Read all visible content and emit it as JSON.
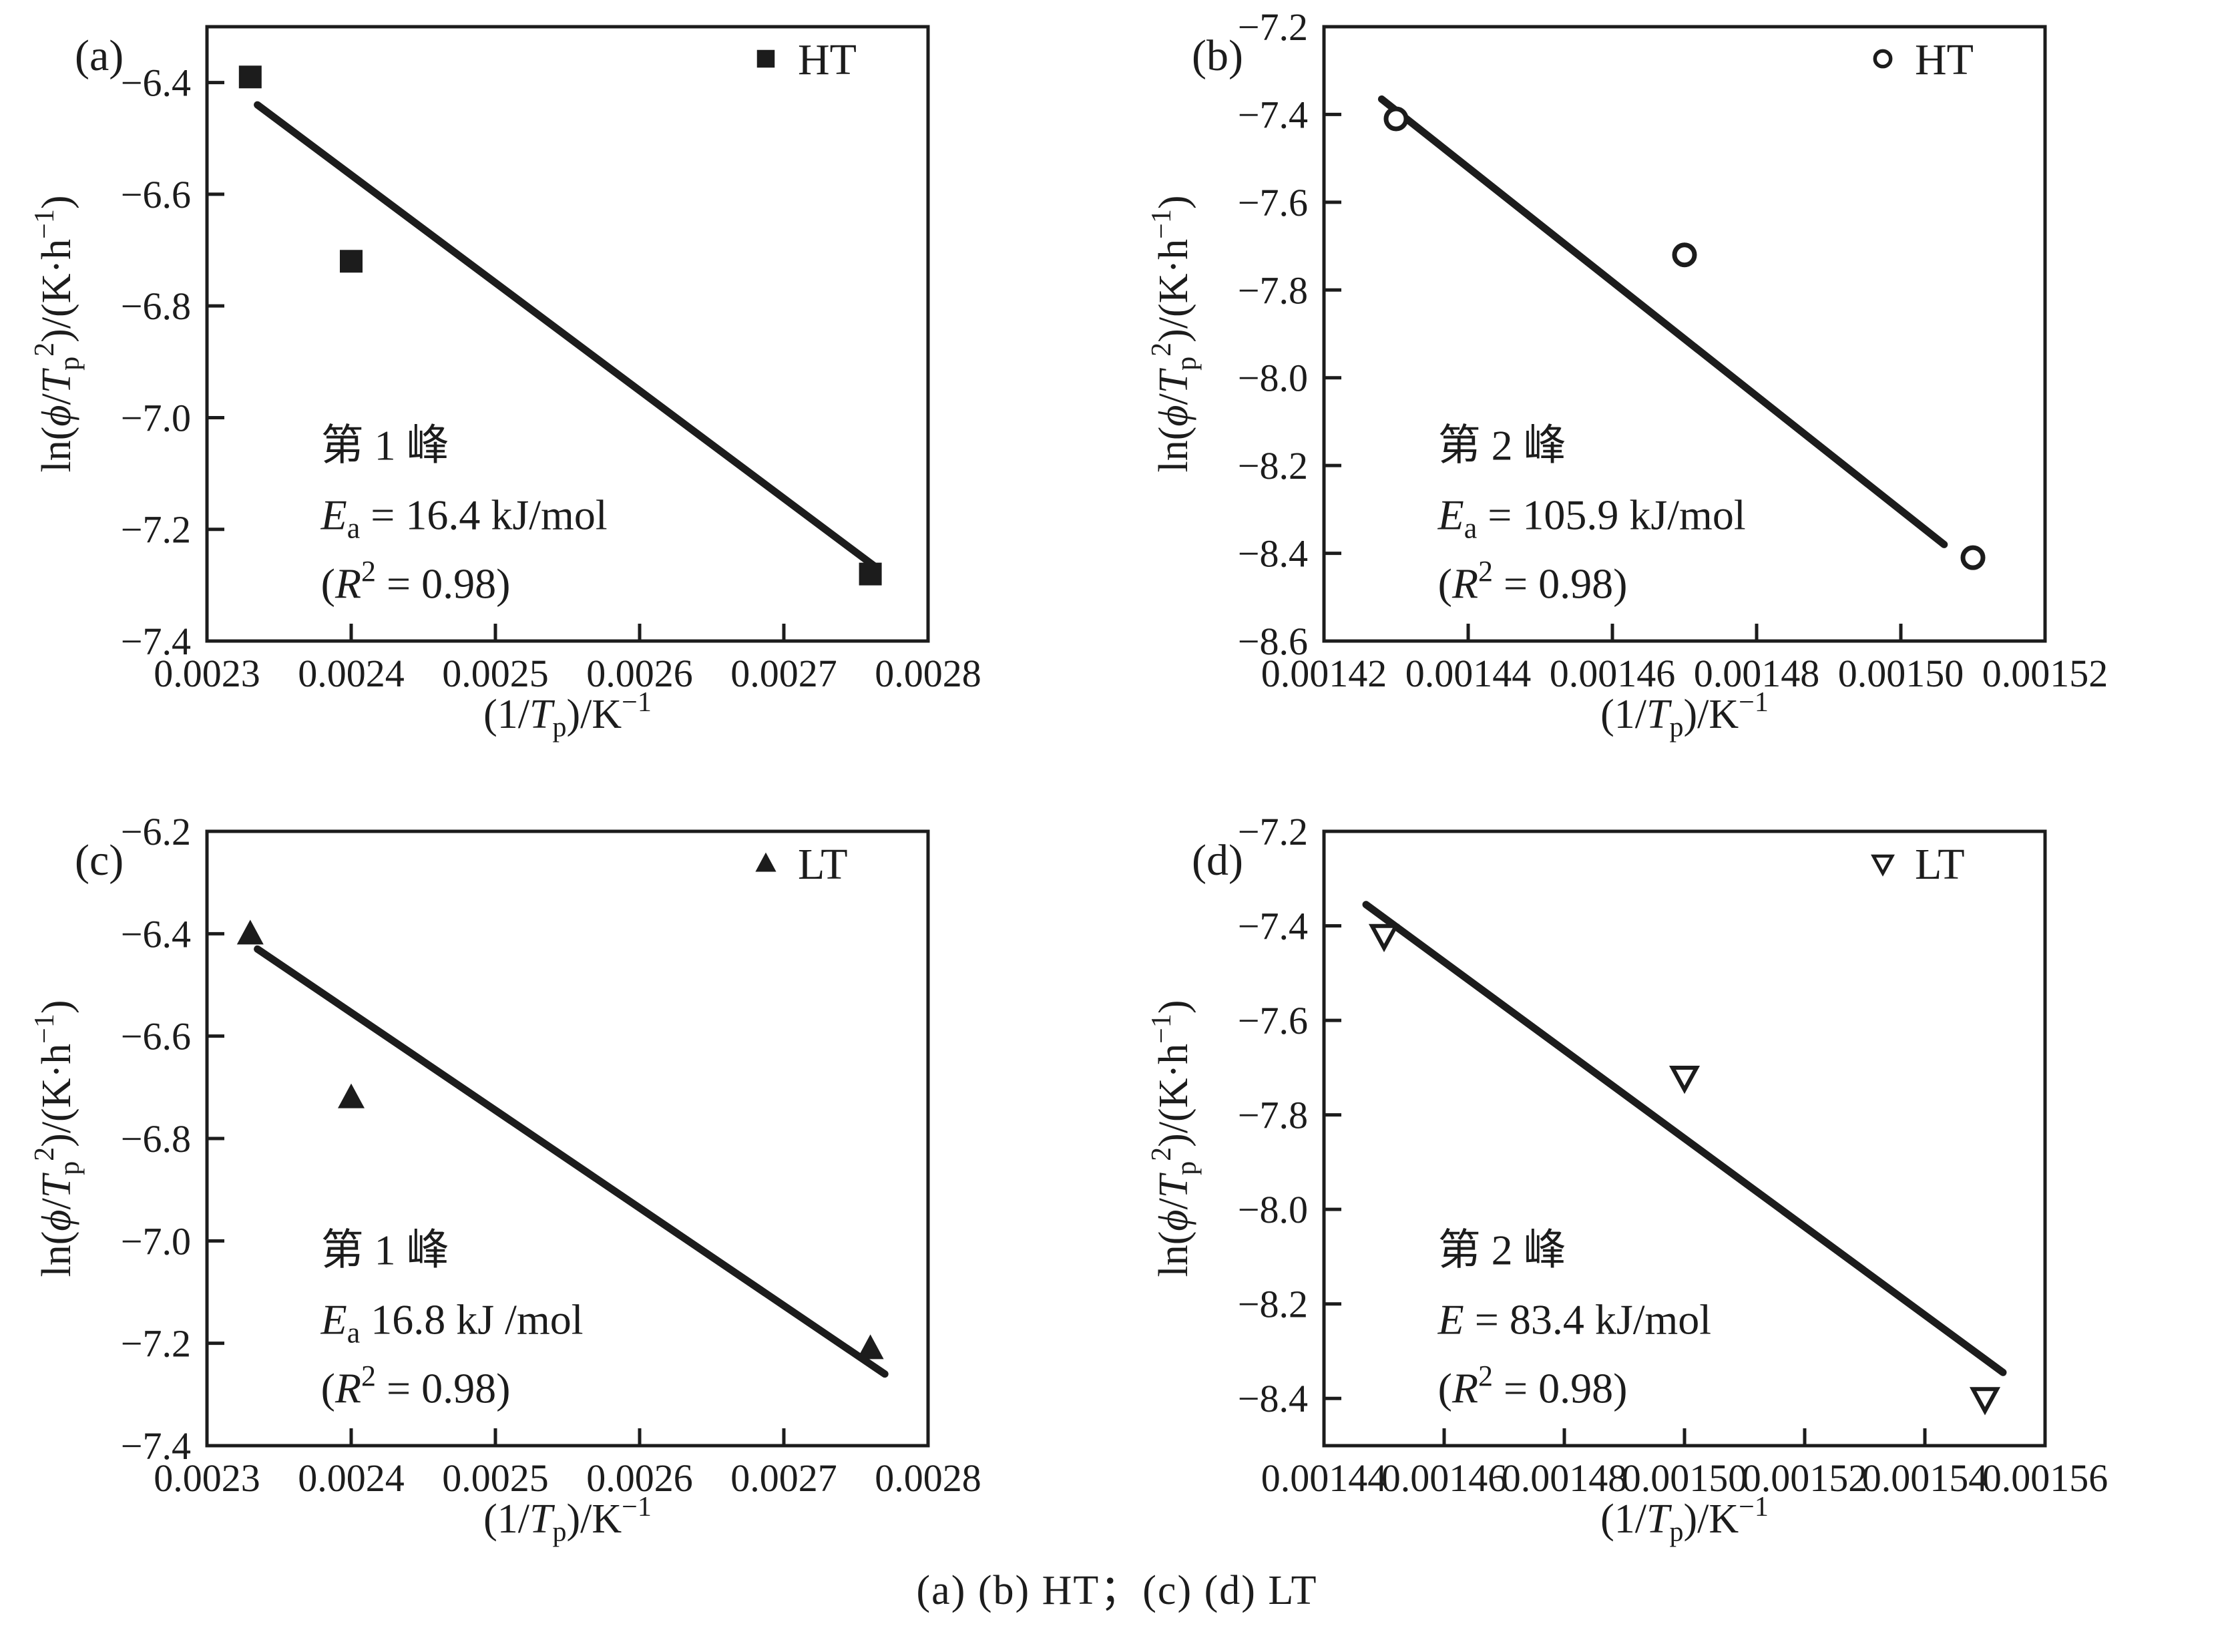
{
  "figure": {
    "caption": "(a) (b) HT；(c) (d) LT",
    "ink_color": "#1c1c1c",
    "background": "#ffffff"
  },
  "shared": {
    "xlabel_text": "(1/Tp)/K^-1",
    "ylabel_text": "ln(φ/Tp^2)/(K·h^-1)",
    "xlabel_rich": [
      {
        "t": "(1/"
      },
      {
        "t": "T",
        "i": true
      },
      {
        "t": "p",
        "p": "sub"
      },
      {
        "t": ")/K"
      },
      {
        "t": "−1",
        "p": "sup"
      }
    ],
    "ylabel_rich": [
      {
        "t": "ln("
      },
      {
        "t": "ϕ",
        "i": true
      },
      {
        "t": "/"
      },
      {
        "t": "T",
        "i": true
      },
      {
        "t": "p",
        "p": "sub"
      },
      {
        "t": "2",
        "p": "sup"
      },
      {
        "t": ")/(K·h"
      },
      {
        "t": "−1",
        "p": "sup"
      },
      {
        "t": ")"
      }
    ]
  },
  "chart_data": [
    {
      "type": "scatter",
      "panel": "a",
      "panel_label": "(a)",
      "legend": {
        "label": "HT",
        "marker": "square-filled",
        "position": "top-right"
      },
      "marker": "square-filled",
      "xlim": [
        0.0023,
        0.0028
      ],
      "ylim": [
        -7.4,
        -6.3
      ],
      "xticks": [
        {
          "v": 0.0023,
          "l": "0.0023"
        },
        {
          "v": 0.0024,
          "l": "0.0024"
        },
        {
          "v": 0.0025,
          "l": "0.0025"
        },
        {
          "v": 0.0026,
          "l": "0.0026"
        },
        {
          "v": 0.0027,
          "l": "0.0027"
        },
        {
          "v": 0.0028,
          "l": "0.0028"
        }
      ],
      "yticks": [
        {
          "v": -6.4,
          "l": "−6.4"
        },
        {
          "v": -6.6,
          "l": "−6.6"
        },
        {
          "v": -6.8,
          "l": "−6.8"
        },
        {
          "v": -7.0,
          "l": "−7.0"
        },
        {
          "v": -7.2,
          "l": "−7.2"
        },
        {
          "v": -7.4,
          "l": "−7.4"
        }
      ],
      "points": [
        [
          0.00233,
          -6.39
        ],
        [
          0.0024,
          -6.72
        ],
        [
          0.00276,
          -7.28
        ]
      ],
      "fit_line": [
        [
          0.002335,
          -6.44
        ],
        [
          0.002765,
          -7.27
        ]
      ],
      "annotation": {
        "lines_text": [
          "第 1 峰",
          "Ea = 16.4 kJ/mol",
          "(R² = 0.98)"
        ],
        "lines_rich": [
          [
            {
              "t": "第 1 峰"
            }
          ],
          [
            {
              "t": "E",
              "i": true
            },
            {
              "t": "a",
              "p": "sub"
            },
            {
              "t": " = 16.4 kJ/mol"
            }
          ],
          [
            {
              "t": "("
            },
            {
              "t": "R",
              "i": true
            },
            {
              "t": "2",
              "p": "sup"
            },
            {
              "t": " = 0.98)"
            }
          ]
        ]
      },
      "grid": false
    },
    {
      "type": "scatter",
      "panel": "b",
      "panel_label": "(b)",
      "legend": {
        "label": "HT",
        "marker": "circle-open",
        "position": "top-right"
      },
      "marker": "circle-open",
      "xlim": [
        0.00142,
        0.00152
      ],
      "ylim": [
        -8.6,
        -7.2
      ],
      "xticks": [
        {
          "v": 0.00142,
          "l": "0.00142"
        },
        {
          "v": 0.00144,
          "l": "0.00144"
        },
        {
          "v": 0.00146,
          "l": "0.00146"
        },
        {
          "v": 0.00148,
          "l": "0.00148"
        },
        {
          "v": 0.0015,
          "l": "0.00150"
        },
        {
          "v": 0.00152,
          "l": "0.00152"
        }
      ],
      "yticks": [
        {
          "v": -7.2,
          "l": "−7.2"
        },
        {
          "v": -7.4,
          "l": "−7.4"
        },
        {
          "v": -7.6,
          "l": "−7.6"
        },
        {
          "v": -7.8,
          "l": "−7.8"
        },
        {
          "v": -8.0,
          "l": "−8.0"
        },
        {
          "v": -8.2,
          "l": "−8.2"
        },
        {
          "v": -8.4,
          "l": "−8.4"
        },
        {
          "v": -8.6,
          "l": "−8.6"
        }
      ],
      "points": [
        [
          0.00143,
          -7.41
        ],
        [
          0.00147,
          -7.72
        ],
        [
          0.00151,
          -8.41
        ]
      ],
      "fit_line": [
        [
          0.001428,
          -7.365
        ],
        [
          0.001506,
          -8.38
        ]
      ],
      "annotation": {
        "lines_text": [
          "第 2 峰",
          "Ea = 105.9 kJ/mol",
          "(R² = 0.98)"
        ],
        "lines_rich": [
          [
            {
              "t": "第 2 峰"
            }
          ],
          [
            {
              "t": "E",
              "i": true
            },
            {
              "t": "a",
              "p": "sub"
            },
            {
              "t": " = 105.9 kJ/mol"
            }
          ],
          [
            {
              "t": "("
            },
            {
              "t": "R",
              "i": true
            },
            {
              "t": "2",
              "p": "sup"
            },
            {
              "t": " = 0.98)"
            }
          ]
        ]
      },
      "grid": false
    },
    {
      "type": "scatter",
      "panel": "c",
      "panel_label": "(c)",
      "legend": {
        "label": "LT",
        "marker": "triangle-up-filled",
        "position": "top-right"
      },
      "marker": "triangle-up-filled",
      "xlim": [
        0.0023,
        0.0028
      ],
      "ylim": [
        -7.4,
        -6.2
      ],
      "xticks": [
        {
          "v": 0.0023,
          "l": "0.0023"
        },
        {
          "v": 0.0024,
          "l": "0.0024"
        },
        {
          "v": 0.0025,
          "l": "0.0025"
        },
        {
          "v": 0.0026,
          "l": "0.0026"
        },
        {
          "v": 0.0027,
          "l": "0.0027"
        },
        {
          "v": 0.0028,
          "l": "0.0028"
        }
      ],
      "yticks": [
        {
          "v": -6.2,
          "l": "−6.2"
        },
        {
          "v": -6.4,
          "l": "−6.4"
        },
        {
          "v": -6.6,
          "l": "−6.6"
        },
        {
          "v": -6.8,
          "l": "−6.8"
        },
        {
          "v": -7.0,
          "l": "−7.0"
        },
        {
          "v": -7.2,
          "l": "−7.2"
        },
        {
          "v": -7.4,
          "l": "−7.4"
        }
      ],
      "points": [
        [
          0.00233,
          -6.4
        ],
        [
          0.0024,
          -6.72
        ],
        [
          0.00276,
          -7.21
        ]
      ],
      "fit_line": [
        [
          0.002335,
          -6.43
        ],
        [
          0.00277,
          -7.26
        ]
      ],
      "annotation": {
        "lines_text": [
          "第 1 峰",
          "Ea  16.8 kJ /mol",
          "(R² = 0.98)"
        ],
        "lines_rich": [
          [
            {
              "t": "第 1 峰"
            }
          ],
          [
            {
              "t": "E",
              "i": true
            },
            {
              "t": "a",
              "p": "sub"
            },
            {
              "t": "   16.8 kJ /mol"
            }
          ],
          [
            {
              "t": "("
            },
            {
              "t": "R",
              "i": true
            },
            {
              "t": "2",
              "p": "sup"
            },
            {
              "t": " = 0.98)"
            }
          ]
        ]
      },
      "grid": false
    },
    {
      "type": "scatter",
      "panel": "d",
      "panel_label": "(d)",
      "legend": {
        "label": "LT",
        "marker": "triangle-down-open",
        "position": "top-right"
      },
      "marker": "triangle-down-open",
      "xlim": [
        0.00144,
        0.00156
      ],
      "ylim": [
        -8.5,
        -7.2
      ],
      "xticks": [
        {
          "v": 0.00144,
          "l": "0.00144"
        },
        {
          "v": 0.00146,
          "l": "0.00146"
        },
        {
          "v": 0.00148,
          "l": "0.00148"
        },
        {
          "v": 0.0015,
          "l": "0.00150"
        },
        {
          "v": 0.00152,
          "l": "0.00152"
        },
        {
          "v": 0.00154,
          "l": "0.00154"
        },
        {
          "v": 0.00156,
          "l": "0.00156"
        }
      ],
      "yticks": [
        {
          "v": -7.2,
          "l": "−7.2"
        },
        {
          "v": -7.4,
          "l": "−7.4"
        },
        {
          "v": -7.6,
          "l": "−7.6"
        },
        {
          "v": -7.8,
          "l": "−7.8"
        },
        {
          "v": -8.0,
          "l": "−8.0"
        },
        {
          "v": -8.2,
          "l": "−8.2"
        },
        {
          "v": -8.4,
          "l": "−8.4"
        }
      ],
      "points": [
        [
          0.00145,
          -7.42
        ],
        [
          0.0015,
          -7.72
        ],
        [
          0.00155,
          -8.4
        ]
      ],
      "fit_line": [
        [
          0.001447,
          -7.355
        ],
        [
          0.001553,
          -8.345
        ]
      ],
      "annotation": {
        "lines_text": [
          "第 2 峰",
          "E = 83.4 kJ/mol",
          "(R² = 0.98)"
        ],
        "lines_rich": [
          [
            {
              "t": "第 2 峰"
            }
          ],
          [
            {
              "t": "E",
              "i": true
            },
            {
              "t": " = 83.4 kJ/mol"
            }
          ],
          [
            {
              "t": "("
            },
            {
              "t": "R",
              "i": true
            },
            {
              "t": "2",
              "p": "sup"
            },
            {
              "t": " = 0.98)"
            }
          ]
        ]
      },
      "grid": false
    }
  ]
}
